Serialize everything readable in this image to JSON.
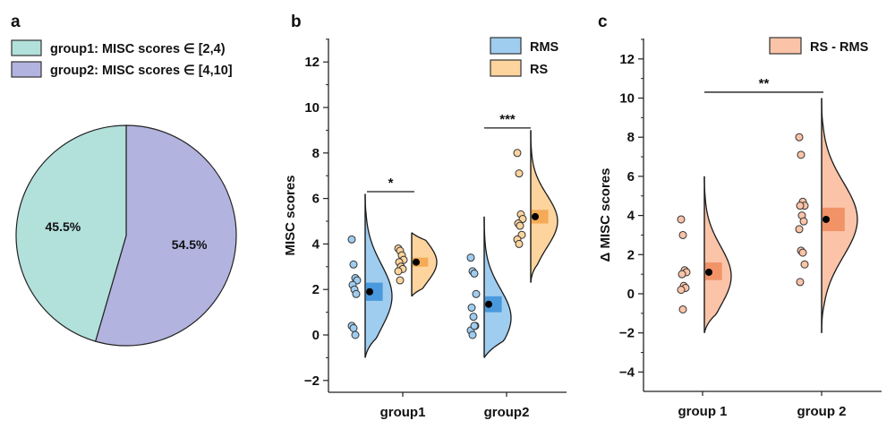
{
  "chart_data": [
    {
      "panel": "a",
      "type": "pie",
      "legend": [
        {
          "label": "group1: MISC scores ∈ [2,4)",
          "color": "#b2e0db"
        },
        {
          "label": "group2: MISC scores ∈ [4,10]",
          "color": "#b3b3e0"
        }
      ],
      "slices": [
        {
          "name": "group1",
          "value": 45.5,
          "label": "45.5%",
          "color": "#b2e0db"
        },
        {
          "name": "group2",
          "value": 54.5,
          "label": "54.5%",
          "color": "#b3b3e0"
        }
      ],
      "legend_position": "top-left"
    },
    {
      "panel": "b",
      "type": "scatter",
      "subtype": "raincloud",
      "ylabel": "MISC scores",
      "xlabel": "",
      "ylim": [
        -2.6,
        13
      ],
      "yticks": [
        -2,
        0,
        2,
        4,
        6,
        8,
        10,
        12
      ],
      "categories": [
        "group1",
        "group2"
      ],
      "legend": [
        {
          "label": "RMS",
          "color": "#9fcdf0"
        },
        {
          "label": "RS",
          "color": "#fdd49e"
        }
      ],
      "legend_position": "top-right",
      "series": [
        {
          "name": "RMS",
          "color": "#9fcdf0",
          "box_color": "#3a8fd8",
          "groups": [
            {
              "category": "group1",
              "points": [
                4.2,
                3.1,
                2.5,
                2.4,
                2.2,
                2.0,
                1.8,
                0.4,
                0.3,
                0.0
              ],
              "mean": 1.9,
              "box": [
                1.5,
                2.3
              ],
              "range": [
                -1.0,
                6.2
              ]
            },
            {
              "category": "group2",
              "points": [
                3.4,
                2.8,
                2.7,
                1.8,
                1.2,
                0.8,
                0.4,
                0.2,
                0.0,
                0.4
              ],
              "mean": 1.35,
              "box": [
                1.0,
                1.7
              ],
              "range": [
                -1.0,
                5.2
              ]
            }
          ]
        },
        {
          "name": "RS",
          "color": "#fdd49e",
          "box_color": "#f2a24a",
          "groups": [
            {
              "category": "group1",
              "points": [
                3.8,
                3.7,
                3.5,
                3.3,
                3.2,
                3.0,
                2.9,
                2.8,
                2.4
              ],
              "mean": 3.2,
              "box": [
                3.0,
                3.4
              ],
              "range": [
                1.7,
                4.5
              ]
            },
            {
              "category": "group2",
              "points": [
                8.0,
                7.1,
                5.3,
                5.1,
                4.9,
                4.8,
                4.4,
                4.2,
                4.0
              ],
              "mean": 5.2,
              "box": [
                4.9,
                5.5
              ],
              "range": [
                2.3,
                9.0
              ]
            }
          ]
        }
      ],
      "annotations": [
        {
          "text": "*",
          "between": [
            "group1 RMS",
            "group1 RS"
          ],
          "y": 6.3
        },
        {
          "text": "***",
          "between": [
            "group2 RMS",
            "group2 RS"
          ],
          "y": 9.1
        }
      ]
    },
    {
      "panel": "c",
      "type": "scatter",
      "subtype": "raincloud",
      "ylabel": "Δ MISC scores",
      "xlabel": "",
      "ylim": [
        -5,
        13
      ],
      "yticks": [
        -4,
        -2,
        0,
        2,
        4,
        6,
        8,
        10,
        12
      ],
      "categories": [
        "group 1",
        "group 2"
      ],
      "legend": [
        {
          "label": "RS - RMS",
          "color": "#fbc3a8"
        }
      ],
      "legend_position": "top-right",
      "series": [
        {
          "name": "RS - RMS",
          "color": "#fbc3a8",
          "box_color": "#ee8a5c",
          "groups": [
            {
              "category": "group 1",
              "points": [
                3.8,
                3.0,
                1.2,
                1.1,
                1.0,
                0.4,
                0.3,
                0.2,
                -0.8
              ],
              "mean": 1.1,
              "box": [
                0.7,
                1.6
              ],
              "range": [
                -2.0,
                6.0
              ]
            },
            {
              "category": "group 2",
              "points": [
                8.0,
                7.1,
                4.7,
                4.5,
                4.5,
                4.0,
                3.7,
                3.3,
                2.2,
                2.1,
                1.5,
                0.6
              ],
              "mean": 3.8,
              "box": [
                3.2,
                4.4
              ],
              "range": [
                -2.0,
                10.0
              ]
            }
          ]
        }
      ],
      "annotations": [
        {
          "text": "**",
          "between": [
            "group 1",
            "group 2"
          ],
          "y": 10.3
        }
      ]
    }
  ],
  "panels": {
    "a": {
      "letter": "a"
    },
    "b": {
      "letter": "b"
    },
    "c": {
      "letter": "c"
    }
  }
}
